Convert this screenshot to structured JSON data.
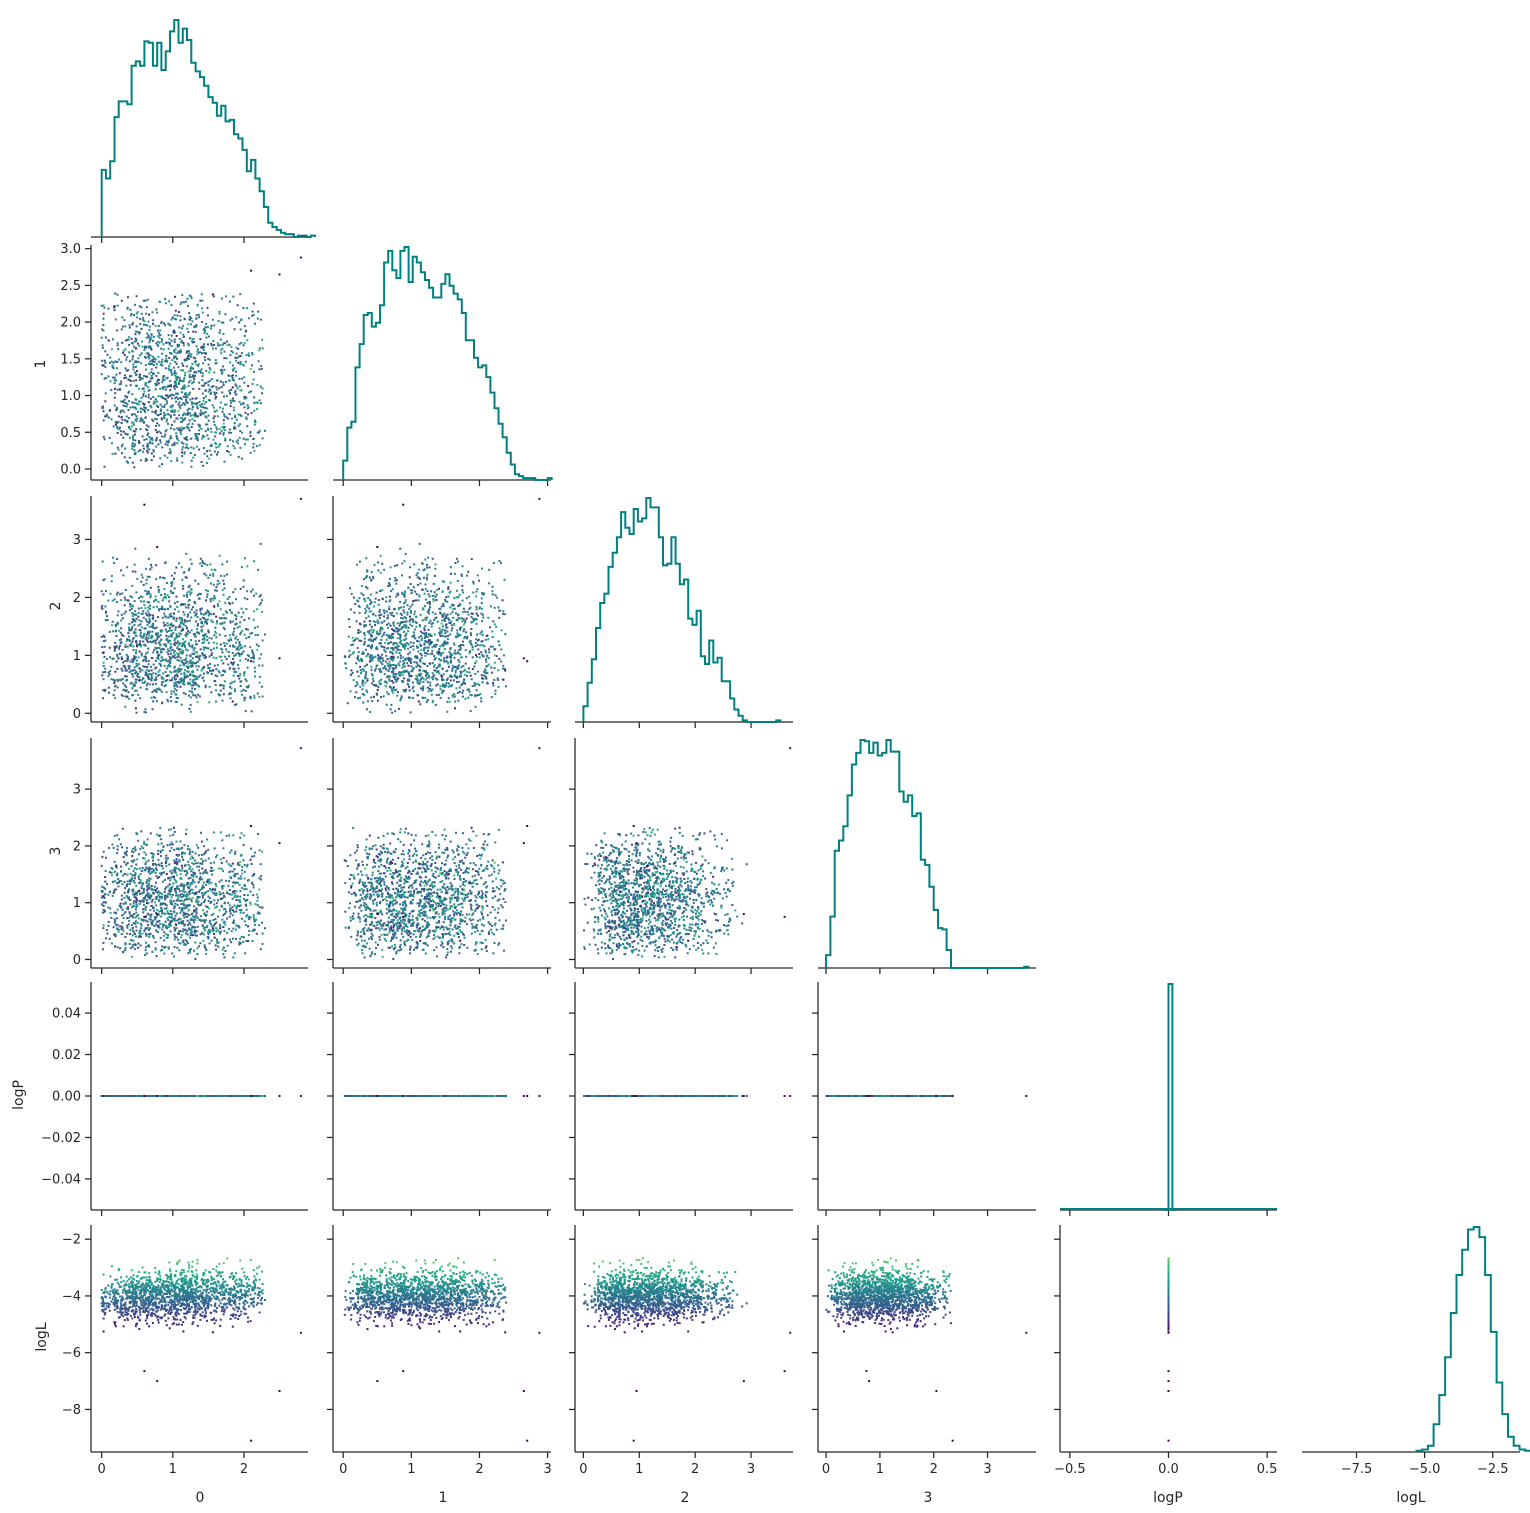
{
  "chart_data": {
    "type": "corner",
    "variables": [
      "0",
      "1",
      "2",
      "3",
      "logP",
      "logL"
    ],
    "line_color": "#008080",
    "colormap": "viridis",
    "color_by": "logL",
    "axes": [
      {
        "name": "0",
        "label": "0",
        "lim": [
          -0.15,
          2.9
        ],
        "ticks": [
          0,
          1,
          2
        ],
        "tick_labels": [
          "0",
          "1",
          "2"
        ]
      },
      {
        "name": "1",
        "label": "1",
        "lim": [
          -0.15,
          3.05
        ],
        "ticks": [
          0,
          1,
          2,
          3
        ],
        "tick_labels": [
          "0",
          "1",
          "2",
          "3"
        ],
        "y_ticks": [
          0.0,
          0.5,
          1.0,
          1.5,
          2.0,
          2.5,
          3.0
        ],
        "y_tick_labels": [
          "0.0",
          "0.5",
          "1.0",
          "1.5",
          "2.0",
          "2.5",
          "3.0"
        ]
      },
      {
        "name": "2",
        "label": "2",
        "lim": [
          -0.15,
          3.75
        ],
        "ticks": [
          0,
          1,
          2,
          3
        ],
        "tick_labels": [
          "0",
          "1",
          "2",
          "3"
        ]
      },
      {
        "name": "3",
        "label": "3",
        "lim": [
          -0.15,
          3.9
        ],
        "ticks": [
          0,
          1,
          2,
          3
        ],
        "tick_labels": [
          "0",
          "1",
          "2",
          "3"
        ]
      },
      {
        "name": "logP",
        "label": "logP",
        "lim": [
          -0.55,
          0.55
        ],
        "ticks": [
          -0.5,
          0.0,
          0.5
        ],
        "tick_labels": [
          "−0.5",
          "0.0",
          "0.5"
        ],
        "y_lim": [
          -0.055,
          0.055
        ],
        "y_ticks": [
          -0.04,
          -0.02,
          0.0,
          0.02,
          0.04
        ],
        "y_tick_labels": [
          "−0.04",
          "−0.02",
          "0.00",
          "0.02",
          "0.04"
        ]
      },
      {
        "name": "logL",
        "label": "logL",
        "lim": [
          -9.5,
          -1.5
        ],
        "ticks": [
          -7.5,
          -5.0,
          -2.5
        ],
        "tick_labels": [
          "−7.5",
          "−5.0",
          "−2.5"
        ],
        "y_ticks": [
          -8,
          -6,
          -4,
          -2
        ],
        "y_tick_labels": [
          "−8",
          "−6",
          "−4",
          "−2"
        ]
      }
    ],
    "histograms": [
      {
        "variable": "0",
        "bin_width": 0.06,
        "start": 0.0,
        "counts": [
          47,
          41,
          53,
          84,
          95,
          95,
          93,
          120,
          123,
          120,
          137,
          136,
          120,
          136,
          117,
          130,
          144,
          152,
          136,
          146,
          138,
          122,
          116,
          112,
          106,
          98,
          94,
          85,
          92,
          81,
          82,
          72,
          69,
          61,
          46,
          54,
          41,
          32,
          21,
          10,
          7,
          5,
          3,
          2,
          2,
          0,
          1,
          1,
          0,
          1
        ]
      },
      {
        "variable": "1",
        "bin_width": 0.06,
        "start": 0.0,
        "counts": [
          10,
          27,
          30,
          58,
          70,
          85,
          86,
          79,
          81,
          90,
          112,
          118,
          108,
          104,
          118,
          120,
          102,
          115,
          112,
          107,
          103,
          99,
          94,
          94,
          101,
          106,
          100,
          96,
          93,
          86,
          72,
          72,
          63,
          58,
          59,
          53,
          45,
          37,
          29,
          22,
          14,
          8,
          3,
          2,
          1,
          1,
          1,
          0,
          0,
          0,
          1
        ]
      },
      {
        "variable": "2",
        "bin_width": 0.075,
        "start": 0.0,
        "counts": [
          10,
          25,
          40,
          60,
          76,
          82,
          99,
          108,
          118,
          134,
          124,
          120,
          136,
          128,
          130,
          143,
          137,
          137,
          118,
          100,
          101,
          118,
          101,
          88,
          91,
          66,
          62,
          71,
          42,
          37,
          52,
          38,
          41,
          26,
          26,
          15,
          8,
          4,
          1,
          0,
          0,
          0,
          0,
          0,
          0,
          0,
          1
        ]
      },
      {
        "variable": "3",
        "bin_width": 0.08,
        "start": 0.0,
        "counts": [
          10,
          40,
          91,
          99,
          110,
          134,
          158,
          167,
          177,
          176,
          167,
          175,
          165,
          167,
          177,
          168,
          168,
          137,
          129,
          134,
          118,
          120,
          84,
          80,
          63,
          45,
          31,
          30,
          14,
          0,
          0,
          0,
          0,
          0,
          0,
          0,
          0,
          0,
          0,
          0,
          0,
          0,
          0,
          0,
          0,
          0,
          1
        ]
      },
      {
        "variable": "logP",
        "bin_width": 0.02,
        "start": -0.02,
        "counts": [
          0,
          3931,
          0
        ]
      },
      {
        "variable": "logL",
        "bin_width": 0.21,
        "start": -5.3,
        "counts": [
          1,
          2,
          5,
          22,
          45,
          75,
          110,
          140,
          160,
          176,
          178,
          170,
          140,
          95,
          55,
          30,
          12,
          5,
          2,
          1
        ]
      }
    ],
    "outliers": [
      {
        "0": 2.1,
        "1": 2.7,
        "2": 0.9,
        "3": 2.35,
        "logP": 0.0,
        "logL": -9.1
      },
      {
        "0": 2.5,
        "1": 2.65,
        "2": 0.95,
        "3": 2.05,
        "logP": 0.0,
        "logL": -7.35
      },
      {
        "0": 2.8,
        "1": 2.88,
        "2": 3.7,
        "3": 3.72,
        "logP": 0.0,
        "logL": -5.3
      },
      {
        "0": 0.6,
        "1": 0.88,
        "2": 3.6,
        "3": 0.75,
        "logP": 0.0,
        "logL": -6.65
      },
      {
        "0": 0.78,
        "1": 0.5,
        "2": 2.87,
        "3": 0.8,
        "logP": 0.0,
        "logL": -7.0
      }
    ]
  },
  "labels": {
    "x_0": "0",
    "x_1": "1",
    "x_2": "2",
    "x_3": "3",
    "x_logP": "logP",
    "x_logL": "logL",
    "y_1": "1",
    "y_2": "2",
    "y_3": "3",
    "y_logP": "logP",
    "y_logL": "logL"
  }
}
